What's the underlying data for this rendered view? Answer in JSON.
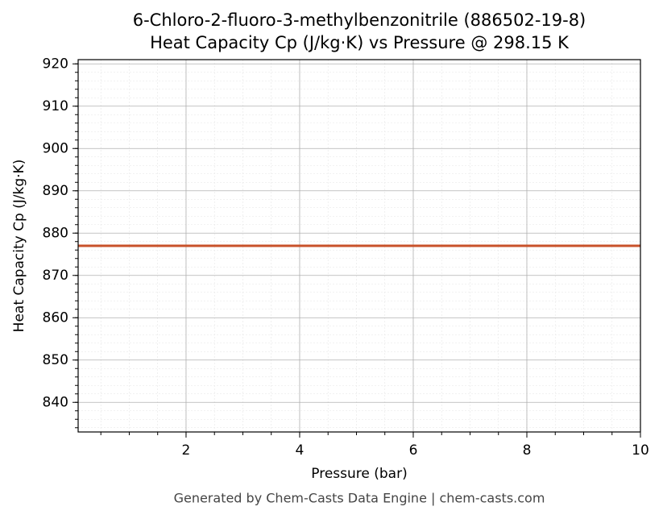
{
  "chart_data": {
    "type": "line",
    "title": "6-Chloro-2-fluoro-3-methylbenzonitrile (886502-19-8)",
    "subtitle": "Heat Capacity Cp (J/kg·K) vs Pressure @ 298.15 K",
    "xlabel": "Pressure (bar)",
    "ylabel": "Heat Capacity Cp (J/kg·K)",
    "footer": "Generated by Chem-Casts Data Engine | chem-casts.com",
    "x": [
      0.1,
      10
    ],
    "series": [
      {
        "name": "Cp",
        "color": "#c8522a",
        "values": [
          877,
          877
        ]
      }
    ],
    "xlim": [
      0.1,
      10
    ],
    "xticks": [
      2,
      4,
      6,
      8,
      10
    ],
    "ylim": [
      833,
      921
    ],
    "yticks": [
      840,
      850,
      860,
      870,
      880,
      890,
      900,
      910,
      920
    ],
    "grid": true,
    "minor_grid": true
  }
}
